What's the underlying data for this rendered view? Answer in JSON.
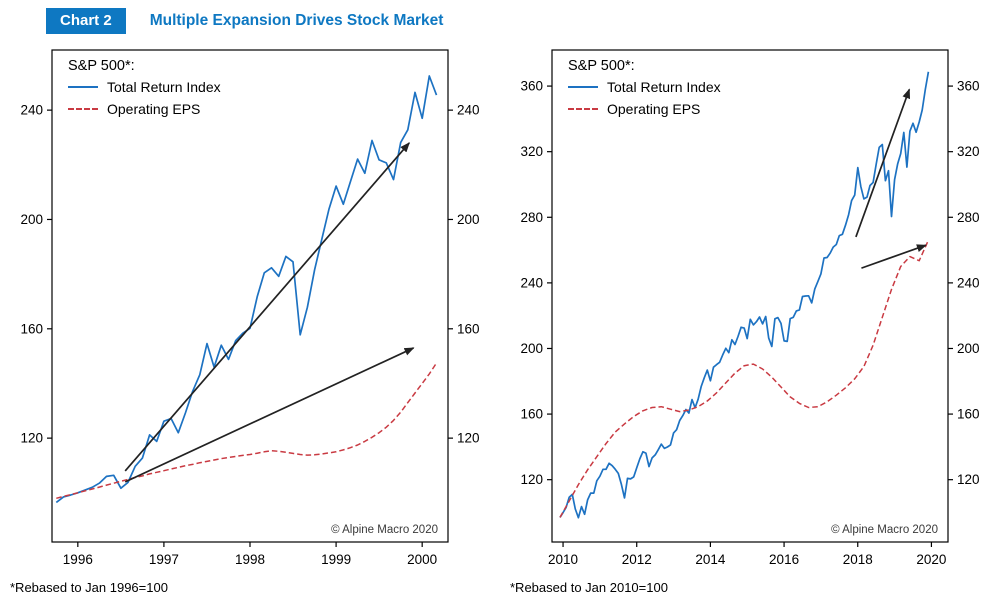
{
  "header": {
    "chart_label": "Chart 2",
    "title": "Multiple Expansion Drives Stock Market"
  },
  "colors": {
    "accent": "#0e78c2",
    "total_return": "#1d72c2",
    "eps": "#c93a42",
    "arrow": "#222222",
    "axis": "#000000"
  },
  "chart_data": [
    {
      "type": "line",
      "legend": {
        "title": "S&P 500*:",
        "items": [
          {
            "label": "Total Return Index",
            "style": "solid",
            "color_key": "total_return"
          },
          {
            "label": "Operating EPS",
            "style": "dashed",
            "color_key": "eps"
          }
        ]
      },
      "copyright": "© Alpine Macro 2020",
      "footnote": "*Rebased to Jan 1996=100",
      "xlim": [
        1995.7,
        2000.3
      ],
      "ylim": [
        82,
        262
      ],
      "xticks": [
        1996,
        1997,
        1998,
        1999,
        2000
      ],
      "yticks": [
        120,
        160,
        200,
        240
      ],
      "grid": false,
      "series": [
        {
          "name": "Total Return Index",
          "color_key": "total_return",
          "style": "solid",
          "x_start": 1995.75,
          "x_step": 0.0833333,
          "values": [
            96.5,
            98.5,
            99.2,
            100.0,
            101.0,
            102.0,
            103.5,
            106.0,
            106.4,
            101.7,
            103.8,
            109.7,
            112.7,
            121.2,
            118.8,
            126.2,
            127.2,
            122.0,
            129.2,
            137.1,
            143.2,
            154.6,
            146.0,
            154.0,
            148.8,
            155.7,
            158.4,
            160.2,
            171.7,
            180.5,
            182.3,
            179.2,
            186.5,
            184.5,
            157.8,
            167.9,
            181.6,
            192.6,
            203.7,
            212.2,
            205.6,
            213.8,
            222.1,
            216.9,
            228.9,
            221.8,
            220.7,
            214.6,
            228.2,
            232.8,
            246.5,
            237.0,
            252.5,
            245.5
          ]
        },
        {
          "name": "Operating EPS",
          "color_key": "eps",
          "style": "dashed",
          "x_start": 1995.75,
          "x_step": 0.0833333,
          "values": [
            98.0,
            98.7,
            99.3,
            100.0,
            100.7,
            101.4,
            102.1,
            102.8,
            103.5,
            104.2,
            104.9,
            105.6,
            106.2,
            106.9,
            107.5,
            108.1,
            108.7,
            109.3,
            109.9,
            110.4,
            111.0,
            111.5,
            112.0,
            112.5,
            112.9,
            113.3,
            113.7,
            114.0,
            114.5,
            115.0,
            115.4,
            115.2,
            114.8,
            114.4,
            114.0,
            113.8,
            113.9,
            114.2,
            114.6,
            115.0,
            115.7,
            116.5,
            117.5,
            118.8,
            120.3,
            122.0,
            124.0,
            126.5,
            129.5,
            133.0,
            136.5,
            140.0,
            143.5,
            147.5
          ]
        }
      ],
      "arrows": [
        [
          1996.55,
          108,
          1999.85,
          228
        ],
        [
          1996.55,
          104,
          1999.9,
          153
        ]
      ]
    },
    {
      "type": "line",
      "legend": {
        "title": "S&P 500*:",
        "items": [
          {
            "label": "Total Return Index",
            "style": "solid",
            "color_key": "total_return"
          },
          {
            "label": "Operating EPS",
            "style": "dashed",
            "color_key": "eps"
          }
        ]
      },
      "copyright": "© Alpine Macro 2020",
      "footnote": "*Rebased to Jan 2010=100",
      "xlim": [
        2009.7,
        2020.45
      ],
      "ylim": [
        82,
        382
      ],
      "xticks": [
        2010,
        2012,
        2014,
        2016,
        2018,
        2020
      ],
      "yticks": [
        120,
        160,
        200,
        240,
        280,
        320,
        360
      ],
      "grid": false,
      "series": [
        {
          "name": "Total Return Index",
          "color_key": "total_return",
          "style": "solid",
          "x_start": 2009.917,
          "x_step": 0.0833333,
          "values": [
            97.0,
            100.0,
            103.1,
            109.3,
            111.0,
            102.1,
            96.8,
            103.6,
            98.9,
            107.7,
            111.8,
            111.8,
            119.3,
            122.1,
            126.3,
            126.3,
            130.0,
            128.5,
            126.4,
            123.8,
            117.1,
            108.9,
            120.8,
            120.5,
            121.7,
            127.2,
            132.7,
            137.0,
            136.2,
            128.0,
            133.3,
            135.1,
            138.2,
            141.7,
            139.1,
            139.9,
            141.2,
            148.5,
            150.5,
            156.1,
            159.1,
            162.8,
            160.6,
            168.8,
            163.9,
            169.0,
            176.8,
            182.2,
            186.8,
            180.3,
            188.6,
            190.2,
            191.6,
            196.1,
            200.1,
            197.4,
            205.3,
            202.4,
            207.3,
            212.9,
            212.4,
            206.0,
            217.8,
            214.4,
            216.4,
            219.2,
            215.0,
            219.5,
            206.3,
            201.2,
            218.1,
            218.8,
            215.3,
            204.6,
            204.3,
            218.2,
            219.0,
            222.9,
            223.5,
            231.7,
            232.0,
            232.1,
            227.8,
            236.3,
            240.9,
            245.5,
            255.2,
            255.5,
            258.1,
            261.8,
            263.4,
            268.8,
            269.6,
            275.2,
            281.6,
            290.2,
            293.5,
            310.3,
            298.8,
            291.2,
            292.3,
            299.4,
            301.2,
            312.4,
            322.6,
            324.4,
            302.3,
            308.4,
            280.5,
            303.0,
            312.7,
            318.8,
            331.7,
            310.6,
            332.5,
            337.3,
            331.9,
            338.1,
            345.4,
            357.9,
            368.7
          ]
        },
        {
          "name": "Operating EPS",
          "color_key": "eps",
          "style": "dashed",
          "x_start": 2009.917,
          "x_step": 0.25,
          "values": [
            97,
            107,
            117,
            126,
            134,
            142,
            149,
            154,
            158.5,
            162,
            164,
            164.5,
            163,
            161.5,
            162.5,
            164.5,
            168,
            173,
            179,
            185,
            189.5,
            190.5,
            187.5,
            182.5,
            176.5,
            170.5,
            166.5,
            164,
            164.5,
            167.5,
            171.5,
            176,
            181.5,
            189,
            202,
            219,
            236,
            250,
            256,
            253.5,
            266
          ]
        }
      ],
      "arrows": [
        [
          2017.95,
          268,
          2019.4,
          358
        ],
        [
          2018.1,
          249,
          2019.85,
          263
        ]
      ]
    }
  ]
}
